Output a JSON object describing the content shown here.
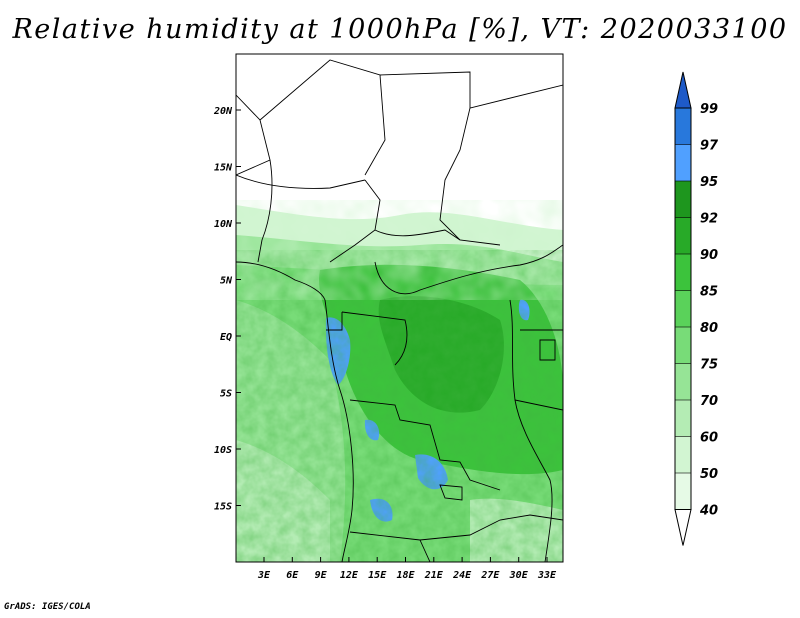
{
  "title": "Relative humidity at 1000hPa [%], VT: 2020033100",
  "footer": "GrADS: IGES/COLA",
  "map": {
    "type": "filled-contour-map",
    "lon_labels": [
      "3E",
      "6E",
      "9E",
      "12E",
      "15E",
      "18E",
      "21E",
      "24E",
      "27E",
      "30E",
      "33E"
    ],
    "lat_labels": [
      "20N",
      "15N",
      "10N",
      "5N",
      "EQ",
      "5S",
      "10S",
      "15S"
    ]
  },
  "colorbar": {
    "levels": [
      40,
      50,
      60,
      70,
      75,
      80,
      85,
      90,
      92,
      95,
      97,
      99
    ],
    "colors": [
      "#ffffff",
      "#e6fae6",
      "#d2f5d2",
      "#b4ecb4",
      "#96e496",
      "#78dc78",
      "#5ad25a",
      "#3cc33c",
      "#28aa28",
      "#1e961e",
      "#50a0ff",
      "#2878dc",
      "#1e5ac8"
    ]
  }
}
